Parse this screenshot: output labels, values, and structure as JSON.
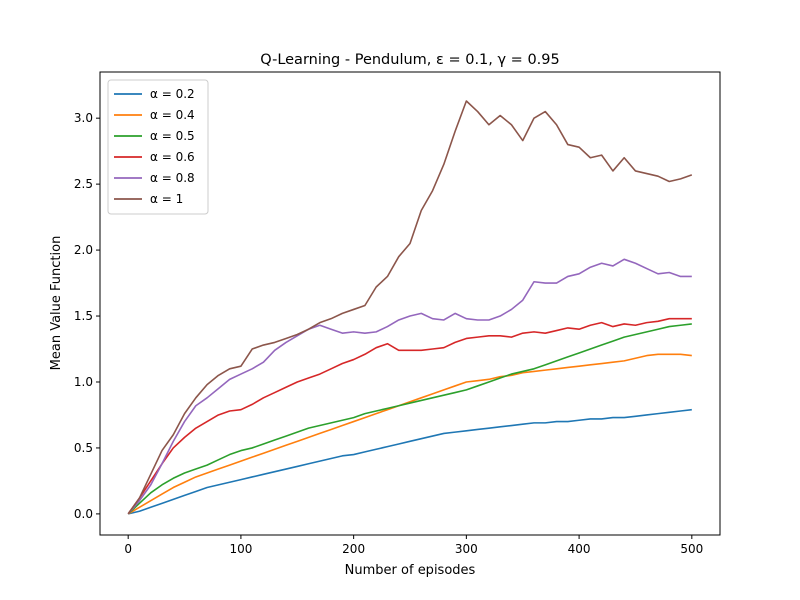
{
  "chart_data": {
    "type": "line",
    "title": "Q-Learning -  Pendulum, ε = 0.1, γ = 0.95",
    "xlabel": "Number of episodes",
    "ylabel": "Mean Value Function",
    "xlim": [
      -25,
      525
    ],
    "ylim": [
      -0.16,
      3.35
    ],
    "xticks": [
      0,
      100,
      200,
      300,
      400,
      500
    ],
    "yticks": [
      0.0,
      0.5,
      1.0,
      1.5,
      2.0,
      2.5,
      3.0
    ],
    "xtick_labels": [
      "0",
      "100",
      "200",
      "300",
      "400",
      "500"
    ],
    "ytick_labels": [
      "0.0",
      "0.5",
      "1.0",
      "1.5",
      "2.0",
      "2.5",
      "3.0"
    ],
    "grid": false,
    "legend_position": "top-left",
    "series": [
      {
        "name": "α = 0.2",
        "color": "#1f77b4",
        "x": [
          0,
          10,
          20,
          30,
          40,
          50,
          60,
          70,
          80,
          90,
          100,
          110,
          120,
          130,
          140,
          150,
          160,
          170,
          180,
          190,
          200,
          210,
          220,
          230,
          240,
          250,
          260,
          270,
          280,
          290,
          300,
          310,
          320,
          330,
          340,
          350,
          360,
          370,
          380,
          390,
          400,
          410,
          420,
          430,
          440,
          450,
          460,
          470,
          480,
          490,
          500
        ],
        "y": [
          0.0,
          0.02,
          0.05,
          0.08,
          0.11,
          0.14,
          0.17,
          0.2,
          0.22,
          0.24,
          0.26,
          0.28,
          0.3,
          0.32,
          0.34,
          0.36,
          0.38,
          0.4,
          0.42,
          0.44,
          0.45,
          0.47,
          0.49,
          0.51,
          0.53,
          0.55,
          0.57,
          0.59,
          0.61,
          0.62,
          0.63,
          0.64,
          0.65,
          0.66,
          0.67,
          0.68,
          0.69,
          0.69,
          0.7,
          0.7,
          0.71,
          0.72,
          0.72,
          0.73,
          0.73,
          0.74,
          0.75,
          0.76,
          0.77,
          0.78,
          0.79
        ]
      },
      {
        "name": "α = 0.4",
        "color": "#ff7f0e",
        "x": [
          0,
          10,
          20,
          30,
          40,
          50,
          60,
          70,
          80,
          90,
          100,
          110,
          120,
          130,
          140,
          150,
          160,
          170,
          180,
          190,
          200,
          210,
          220,
          230,
          240,
          250,
          260,
          270,
          280,
          290,
          300,
          310,
          320,
          330,
          340,
          350,
          360,
          370,
          380,
          390,
          400,
          410,
          420,
          430,
          440,
          450,
          460,
          470,
          480,
          490,
          500
        ],
        "y": [
          0.0,
          0.05,
          0.1,
          0.15,
          0.2,
          0.24,
          0.28,
          0.31,
          0.34,
          0.37,
          0.4,
          0.43,
          0.46,
          0.49,
          0.52,
          0.55,
          0.58,
          0.61,
          0.64,
          0.67,
          0.7,
          0.73,
          0.76,
          0.79,
          0.82,
          0.85,
          0.88,
          0.91,
          0.94,
          0.97,
          1.0,
          1.01,
          1.02,
          1.04,
          1.05,
          1.07,
          1.08,
          1.09,
          1.1,
          1.11,
          1.12,
          1.13,
          1.14,
          1.15,
          1.16,
          1.18,
          1.2,
          1.21,
          1.21,
          1.21,
          1.2
        ]
      },
      {
        "name": "α = 0.5",
        "color": "#2ca02c",
        "x": [
          0,
          10,
          20,
          30,
          40,
          50,
          60,
          70,
          80,
          90,
          100,
          110,
          120,
          130,
          140,
          150,
          160,
          170,
          180,
          190,
          200,
          210,
          220,
          230,
          240,
          250,
          260,
          270,
          280,
          290,
          300,
          310,
          320,
          330,
          340,
          350,
          360,
          370,
          380,
          390,
          400,
          410,
          420,
          430,
          440,
          450,
          460,
          470,
          480,
          490,
          500
        ],
        "y": [
          0.0,
          0.08,
          0.16,
          0.22,
          0.27,
          0.31,
          0.34,
          0.37,
          0.41,
          0.45,
          0.48,
          0.5,
          0.53,
          0.56,
          0.59,
          0.62,
          0.65,
          0.67,
          0.69,
          0.71,
          0.73,
          0.76,
          0.78,
          0.8,
          0.82,
          0.84,
          0.86,
          0.88,
          0.9,
          0.92,
          0.94,
          0.97,
          1.0,
          1.03,
          1.06,
          1.08,
          1.1,
          1.13,
          1.16,
          1.19,
          1.22,
          1.25,
          1.28,
          1.31,
          1.34,
          1.36,
          1.38,
          1.4,
          1.42,
          1.43,
          1.44
        ]
      },
      {
        "name": "α = 0.6",
        "color": "#d62728",
        "x": [
          0,
          10,
          20,
          30,
          40,
          50,
          60,
          70,
          80,
          90,
          100,
          110,
          120,
          130,
          140,
          150,
          160,
          170,
          180,
          190,
          200,
          210,
          220,
          230,
          240,
          250,
          260,
          270,
          280,
          290,
          300,
          310,
          320,
          330,
          340,
          350,
          360,
          370,
          380,
          390,
          400,
          410,
          420,
          430,
          440,
          450,
          460,
          470,
          480,
          490,
          500
        ],
        "y": [
          0.0,
          0.12,
          0.25,
          0.38,
          0.5,
          0.58,
          0.65,
          0.7,
          0.75,
          0.78,
          0.79,
          0.83,
          0.88,
          0.92,
          0.96,
          1.0,
          1.03,
          1.06,
          1.1,
          1.14,
          1.17,
          1.21,
          1.26,
          1.29,
          1.24,
          1.24,
          1.24,
          1.25,
          1.26,
          1.3,
          1.33,
          1.34,
          1.35,
          1.35,
          1.34,
          1.37,
          1.38,
          1.37,
          1.39,
          1.41,
          1.4,
          1.43,
          1.45,
          1.42,
          1.44,
          1.43,
          1.45,
          1.46,
          1.48,
          1.48,
          1.48
        ]
      },
      {
        "name": "α = 0.8",
        "color": "#9467bd",
        "x": [
          0,
          10,
          20,
          30,
          40,
          50,
          60,
          70,
          80,
          90,
          100,
          110,
          120,
          130,
          140,
          150,
          160,
          170,
          180,
          190,
          200,
          210,
          220,
          230,
          240,
          250,
          260,
          270,
          280,
          290,
          300,
          310,
          320,
          330,
          340,
          350,
          360,
          370,
          380,
          390,
          400,
          410,
          420,
          430,
          440,
          450,
          460,
          470,
          480,
          490,
          500
        ],
        "y": [
          0.0,
          0.1,
          0.22,
          0.38,
          0.55,
          0.7,
          0.82,
          0.88,
          0.95,
          1.02,
          1.06,
          1.1,
          1.15,
          1.24,
          1.3,
          1.35,
          1.4,
          1.43,
          1.4,
          1.37,
          1.38,
          1.37,
          1.38,
          1.42,
          1.47,
          1.5,
          1.52,
          1.48,
          1.47,
          1.52,
          1.48,
          1.47,
          1.47,
          1.5,
          1.55,
          1.62,
          1.76,
          1.75,
          1.75,
          1.8,
          1.82,
          1.87,
          1.9,
          1.88,
          1.93,
          1.9,
          1.86,
          1.82,
          1.83,
          1.8,
          1.8
        ]
      },
      {
        "name": "α = 1",
        "color": "#8c564b",
        "x": [
          0,
          10,
          20,
          30,
          40,
          50,
          60,
          70,
          80,
          90,
          100,
          110,
          120,
          130,
          140,
          150,
          160,
          170,
          180,
          190,
          200,
          210,
          220,
          230,
          240,
          250,
          260,
          270,
          280,
          290,
          300,
          310,
          320,
          330,
          340,
          350,
          360,
          370,
          380,
          390,
          400,
          410,
          420,
          430,
          440,
          450,
          460,
          470,
          480,
          490,
          500
        ],
        "y": [
          0.0,
          0.12,
          0.3,
          0.48,
          0.6,
          0.76,
          0.88,
          0.98,
          1.05,
          1.1,
          1.12,
          1.25,
          1.28,
          1.3,
          1.33,
          1.36,
          1.4,
          1.45,
          1.48,
          1.52,
          1.55,
          1.58,
          1.72,
          1.8,
          1.95,
          2.05,
          2.3,
          2.45,
          2.65,
          2.9,
          3.13,
          3.05,
          2.95,
          3.02,
          2.95,
          2.83,
          3.0,
          3.05,
          2.95,
          2.8,
          2.78,
          2.7,
          2.72,
          2.6,
          2.7,
          2.6,
          2.58,
          2.56,
          2.52,
          2.54,
          2.57
        ]
      }
    ]
  }
}
